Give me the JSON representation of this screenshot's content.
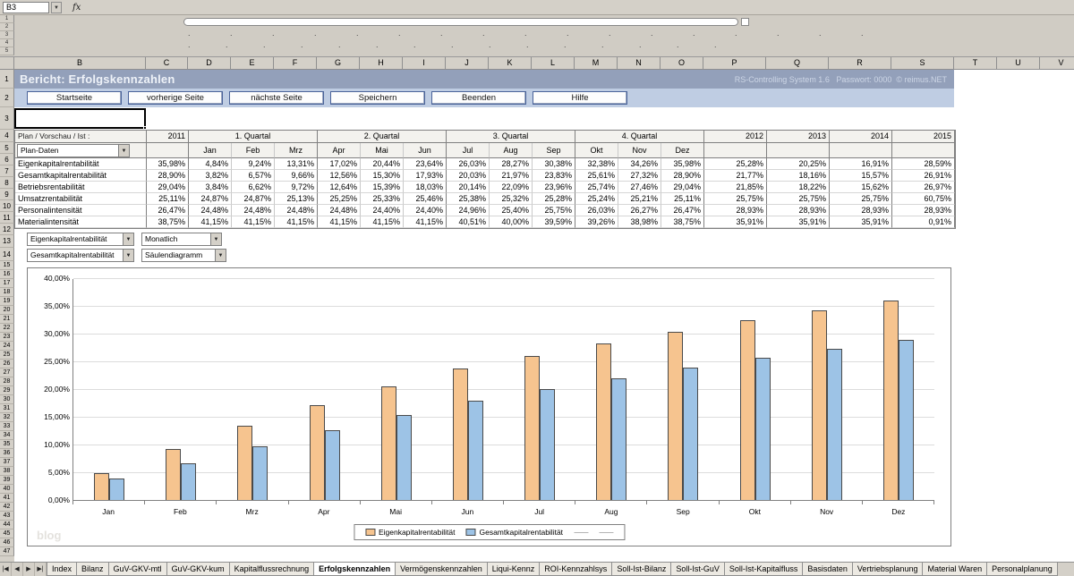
{
  "formula_bar": {
    "cell_ref": "B3",
    "fx_label": "fx"
  },
  "top_strip": {
    "mini_rows": [
      "1",
      "2",
      "3",
      "4",
      "5"
    ],
    "dots_line1": ". . . . . . . . . . . . . . . . .",
    "dots_line2": ". . . . . . . . . . . . . . ."
  },
  "grid": {
    "columns": [
      "B",
      "C",
      "D",
      "E",
      "F",
      "G",
      "H",
      "I",
      "J",
      "K",
      "L",
      "M",
      "N",
      "O",
      "P",
      "Q",
      "R",
      "S",
      "T",
      "U",
      "V"
    ],
    "row_count": 47
  },
  "report": {
    "title": "Bericht: Erfolgskennzahlen",
    "meta": "RS-Controlling System 1.6   Passwort: 0000  © reimus.NET"
  },
  "nav_buttons": [
    {
      "label": "Startseite"
    },
    {
      "label": "vorherige Seite"
    },
    {
      "label": "nächste Seite"
    },
    {
      "label": "Speichern"
    },
    {
      "label": "Beenden"
    },
    {
      "label": "Hilfe"
    }
  ],
  "plan_section": {
    "label": "Plan / Vorschau / Ist :",
    "selected": "Plan-Daten"
  },
  "table": {
    "annual_headers": [
      "2011",
      "2012",
      "2013",
      "2014",
      "2015"
    ],
    "quarter_headers": [
      "1. Quartal",
      "2. Quartal",
      "3. Quartal",
      "4. Quartal"
    ],
    "month_headers": [
      "Jan",
      "Feb",
      "Mrz",
      "Apr",
      "Mai",
      "Jun",
      "Jul",
      "Aug",
      "Sep",
      "Okt",
      "Nov",
      "Dez"
    ],
    "rows": [
      {
        "label": "Eigenkapitalrentabilität",
        "y2011": "35,98%",
        "monthly": [
          "4,84%",
          "9,24%",
          "13,31%",
          "17,02%",
          "20,44%",
          "23,64%",
          "26,03%",
          "28,27%",
          "30,38%",
          "32,38%",
          "34,26%",
          "35,98%"
        ],
        "annual": [
          "25,28%",
          "20,25%",
          "16,91%",
          "28,59%"
        ]
      },
      {
        "label": "Gesamtkapitalrentabilität",
        "y2011": "28,90%",
        "monthly": [
          "3,82%",
          "6,57%",
          "9,66%",
          "12,56%",
          "15,30%",
          "17,93%",
          "20,03%",
          "21,97%",
          "23,83%",
          "25,61%",
          "27,32%",
          "28,90%"
        ],
        "annual": [
          "21,77%",
          "18,16%",
          "15,57%",
          "26,91%"
        ]
      },
      {
        "label": "Betriebsrentabilität",
        "y2011": "29,04%",
        "monthly": [
          "3,84%",
          "6,62%",
          "9,72%",
          "12,64%",
          "15,39%",
          "18,03%",
          "20,14%",
          "22,09%",
          "23,96%",
          "25,74%",
          "27,46%",
          "29,04%"
        ],
        "annual": [
          "21,85%",
          "18,22%",
          "15,62%",
          "26,97%"
        ]
      },
      {
        "label": "Umsatzrentabilität",
        "y2011": "25,11%",
        "monthly": [
          "24,87%",
          "24,87%",
          "25,13%",
          "25,25%",
          "25,33%",
          "25,46%",
          "25,38%",
          "25,32%",
          "25,28%",
          "25,24%",
          "25,21%",
          "25,11%"
        ],
        "annual": [
          "25,75%",
          "25,75%",
          "25,75%",
          "60,75%"
        ]
      },
      {
        "label": "Personalintensität",
        "y2011": "26,47%",
        "monthly": [
          "24,48%",
          "24,48%",
          "24,48%",
          "24,48%",
          "24,40%",
          "24,40%",
          "24,96%",
          "25,40%",
          "25,75%",
          "26,03%",
          "26,27%",
          "26,47%"
        ],
        "annual": [
          "28,93%",
          "28,93%",
          "28,93%",
          "28,93%"
        ]
      },
      {
        "label": "Materialintensität",
        "y2011": "38,75%",
        "monthly": [
          "41,15%",
          "41,15%",
          "41,15%",
          "41,15%",
          "41,15%",
          "41,15%",
          "40,51%",
          "40,00%",
          "39,59%",
          "39,26%",
          "38,98%",
          "38,75%"
        ],
        "annual": [
          "35,91%",
          "35,91%",
          "35,91%",
          "0,91%"
        ]
      }
    ]
  },
  "chart_controls": {
    "series1": "Eigenkapitalrentabilität",
    "interval": "Monatlich",
    "series2": "Gesamtkapitalrentabilität",
    "chart_type": "Säulendiagramm"
  },
  "chart_data": {
    "type": "bar",
    "categories": [
      "Jan",
      "Feb",
      "Mrz",
      "Apr",
      "Mai",
      "Jun",
      "Jul",
      "Aug",
      "Sep",
      "Okt",
      "Nov",
      "Dez"
    ],
    "series": [
      {
        "name": "Eigenkapitalrentabilität",
        "color": "#f6c48f",
        "values": [
          4.84,
          9.24,
          13.31,
          17.02,
          20.44,
          23.64,
          26.03,
          28.27,
          30.38,
          32.38,
          34.26,
          35.98
        ]
      },
      {
        "name": "Gesamtkapitalrentabilität",
        "color": "#9dc3e6",
        "values": [
          3.82,
          6.57,
          9.66,
          12.56,
          15.3,
          17.93,
          20.03,
          21.97,
          23.83,
          25.61,
          27.32,
          28.9
        ]
      }
    ],
    "ylim": [
      0,
      40
    ],
    "ytick_labels": [
      "0,00%",
      "5,00%",
      "10,00%",
      "15,00%",
      "20,00%",
      "25,00%",
      "30,00%",
      "35,00%",
      "40,00%"
    ],
    "grid": true,
    "legend_position": "bottom",
    "legend_extra_dashes": 2
  },
  "watermark": "blog",
  "sheet_tabs": {
    "nav": [
      "|◀",
      "◀",
      "▶",
      "▶|"
    ],
    "tabs": [
      {
        "label": "Index",
        "active": false
      },
      {
        "label": "Bilanz",
        "active": false
      },
      {
        "label": "GuV-GKV-mtl",
        "active": false
      },
      {
        "label": "GuV-GKV-kum",
        "active": false
      },
      {
        "label": "Kapitalflussrechnung",
        "active": false
      },
      {
        "label": "Erfolgskennzahlen",
        "active": true
      },
      {
        "label": "Vermögenskennzahlen",
        "active": false
      },
      {
        "label": "Liqui-Kennz",
        "active": false
      },
      {
        "label": "ROI-Kennzahlsys",
        "active": false
      },
      {
        "label": "Soll-Ist-Bilanz",
        "active": false
      },
      {
        "label": "Soll-Ist-GuV",
        "active": false
      },
      {
        "label": "Soll-Ist-Kapitalfluss",
        "active": false
      },
      {
        "label": "Basisdaten",
        "active": false
      },
      {
        "label": "Vertriebsplanung",
        "active": false
      },
      {
        "label": "Material Waren",
        "active": false
      },
      {
        "label": "Personalplanung",
        "active": false
      }
    ]
  }
}
